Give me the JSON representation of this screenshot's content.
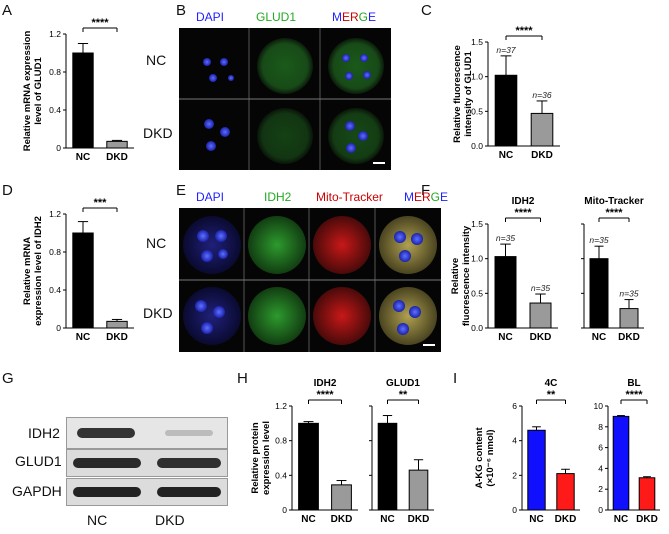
{
  "panel_letters": {
    "A": "A",
    "B": "B",
    "C": "C",
    "D": "D",
    "E": "E",
    "F": "F",
    "G": "G",
    "H": "H",
    "I": "I"
  },
  "colors": {
    "black_bar": "#000000",
    "gray_bar": "#9a9a9a",
    "blue_bar": "#1010ff",
    "red_bar": "#ff1a1a",
    "dapi": "#2020ff",
    "green": "#22aa22",
    "red_text": "#cc0000"
  },
  "panel_B": {
    "channels": [
      "DAPI",
      "GLUD1",
      "MERGE"
    ],
    "rows": [
      "NC",
      "DKD"
    ]
  },
  "panel_E": {
    "channels": [
      "DAPI",
      "IDH2",
      "Mito-Tracker",
      "MERGE"
    ],
    "rows": [
      "NC",
      "DKD"
    ]
  },
  "panel_G": {
    "bands": [
      "IDH2",
      "GLUD1",
      "GAPDH"
    ],
    "lanes": [
      "NC",
      "DKD"
    ]
  },
  "chart_data": [
    {
      "id": "A",
      "type": "bar",
      "categories": [
        "NC",
        "DKD"
      ],
      "values": [
        1.0,
        0.07
      ],
      "errors": [
        0.1,
        0.01
      ],
      "ylabel": "Relative mRNA expression level of GLUD1",
      "ylim": [
        0,
        1.2
      ],
      "yticks": [
        "0",
        "0.4",
        "0.8",
        "1.2"
      ],
      "significance": "****",
      "bar_colors": [
        "#000000",
        "#9a9a9a"
      ],
      "title": "",
      "ns": []
    },
    {
      "id": "C",
      "type": "bar",
      "categories": [
        "NC",
        "DKD"
      ],
      "values": [
        1.02,
        0.47
      ],
      "errors": [
        0.28,
        0.18
      ],
      "ylabel": "Relative fluorescence intensity of GLUD1",
      "ylim": [
        0,
        1.5
      ],
      "yticks": [
        "0.0",
        "0.5",
        "1.0",
        "1.5"
      ],
      "significance": "****",
      "bar_colors": [
        "#000000",
        "#9a9a9a"
      ],
      "title": "",
      "ns": [
        "n=37",
        "n=36"
      ]
    },
    {
      "id": "D",
      "type": "bar",
      "categories": [
        "NC",
        "DKD"
      ],
      "values": [
        1.0,
        0.07
      ],
      "errors": [
        0.12,
        0.02
      ],
      "ylabel": "Relative mRNA expression level of IDH2",
      "ylim": [
        0,
        1.2
      ],
      "yticks": [
        "0",
        "0.4",
        "0.8",
        "1.2"
      ],
      "significance": "***",
      "bar_colors": [
        "#000000",
        "#9a9a9a"
      ],
      "title": "",
      "ns": []
    },
    {
      "id": "F1",
      "type": "bar",
      "categories": [
        "NC",
        "DKD"
      ],
      "values": [
        1.03,
        0.36
      ],
      "errors": [
        0.18,
        0.13
      ],
      "ylabel": "Relative fluorescence intensity",
      "ylim": [
        0,
        1.5
      ],
      "yticks": [
        "0.0",
        "0.5",
        "1.0",
        "1.5"
      ],
      "significance": "****",
      "bar_colors": [
        "#000000",
        "#9a9a9a"
      ],
      "title": "IDH2",
      "ns": [
        "n=35",
        "n=35"
      ]
    },
    {
      "id": "F2",
      "type": "bar",
      "categories": [
        "NC",
        "DKD"
      ],
      "values": [
        1.0,
        0.28
      ],
      "errors": [
        0.18,
        0.13
      ],
      "ylabel": "",
      "ylim": [
        0,
        1.5
      ],
      "yticks": [],
      "significance": "****",
      "bar_colors": [
        "#000000",
        "#9a9a9a"
      ],
      "title": "Mito-Tracker",
      "ns": [
        "n=35",
        "n=35"
      ]
    },
    {
      "id": "H1",
      "type": "bar",
      "categories": [
        "NC",
        "DKD"
      ],
      "values": [
        1.0,
        0.29
      ],
      "errors": [
        0.02,
        0.05
      ],
      "ylabel": "Relative protein expression level",
      "ylim": [
        0,
        1.2
      ],
      "yticks": [
        "0",
        "0.4",
        "0.8",
        "1.2"
      ],
      "significance": "****",
      "bar_colors": [
        "#000000",
        "#9a9a9a"
      ],
      "title": "IDH2",
      "ns": []
    },
    {
      "id": "H2",
      "type": "bar",
      "categories": [
        "NC",
        "DKD"
      ],
      "values": [
        1.0,
        0.46
      ],
      "errors": [
        0.09,
        0.12
      ],
      "ylabel": "",
      "ylim": [
        0,
        1.2
      ],
      "yticks": [],
      "significance": "**",
      "bar_colors": [
        "#000000",
        "#9a9a9a"
      ],
      "title": "GLUD1",
      "ns": []
    },
    {
      "id": "I1",
      "type": "bar",
      "categories": [
        "NC",
        "DKD"
      ],
      "values": [
        4.6,
        2.1
      ],
      "errors": [
        0.2,
        0.25
      ],
      "ylabel": "A-KG content (×10⁻⁶ nmol)",
      "ylim": [
        0,
        6
      ],
      "yticks": [
        "0",
        "2",
        "4",
        "6"
      ],
      "significance": "**",
      "bar_colors": [
        "#1010ff",
        "#ff1a1a"
      ],
      "title": "4C",
      "ns": []
    },
    {
      "id": "I2",
      "type": "bar",
      "categories": [
        "NC",
        "DKD"
      ],
      "values": [
        9.0,
        3.1
      ],
      "errors": [
        0.08,
        0.1
      ],
      "ylabel": "",
      "ylim": [
        0,
        10
      ],
      "yticks": [
        "0",
        "2",
        "4",
        "6",
        "8",
        "10"
      ],
      "significance": "****",
      "bar_colors": [
        "#1010ff",
        "#ff1a1a"
      ],
      "title": "BL",
      "ns": []
    }
  ]
}
